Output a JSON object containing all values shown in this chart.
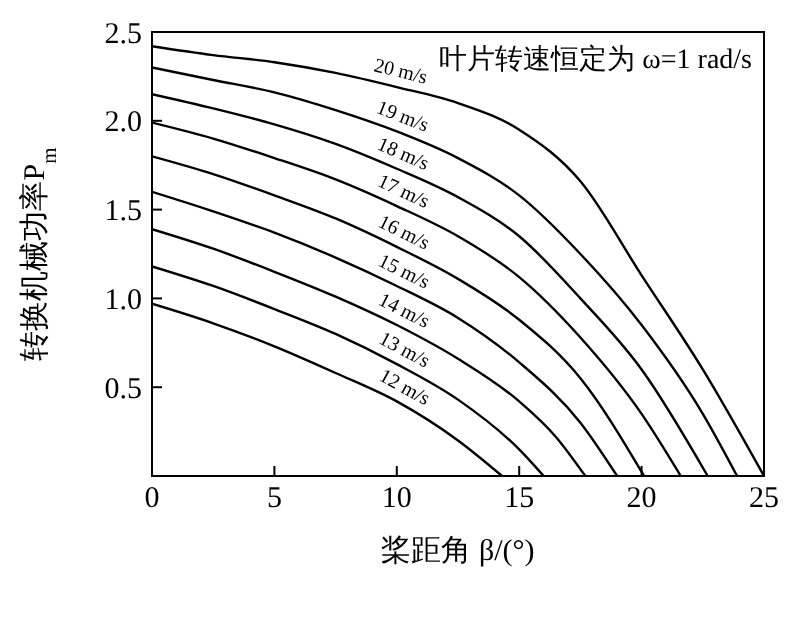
{
  "chart_data": {
    "type": "line",
    "xlabel": "桨距角 β/(°)",
    "ylabel": "转换机械功率P$_{m}$",
    "annotations": [
      "叶片转速恒定为 ω=1 rad/s"
    ],
    "xlim": [
      0,
      25
    ],
    "xticks": [
      0,
      5,
      10,
      15,
      20,
      25
    ],
    "ylim": [
      0,
      2.5
    ],
    "yticks": [
      {
        "value": 0.5,
        "label": "0.5"
      },
      {
        "value": 1,
        "label": "1.0"
      },
      {
        "value": 1.5,
        "label": "1.5"
      },
      {
        "value": 2,
        "label": "2.0"
      },
      {
        "value": 2.5,
        "label": "2.5"
      }
    ],
    "grid": false,
    "legend": false,
    "marker": "none",
    "line_style": "solid",
    "series": [
      {
        "name": "12 m/s",
        "color": "#000000",
        "x": [
          0,
          2.5,
          5,
          7.5,
          10,
          12.5,
          14.3
        ],
        "values": [
          0.97,
          0.86,
          0.73,
          0.58,
          0.42,
          0.2,
          0
        ]
      },
      {
        "name": "13 m/s",
        "color": "#000000",
        "x": [
          0,
          2.5,
          5,
          7.5,
          10,
          12.5,
          15,
          16
        ],
        "values": [
          1.18,
          1.07,
          0.94,
          0.8,
          0.63,
          0.43,
          0.15,
          0
        ]
      },
      {
        "name": "14 m/s",
        "color": "#000000",
        "x": [
          0,
          2.5,
          5,
          7.5,
          10,
          12.5,
          15,
          16.5,
          17.7
        ],
        "values": [
          1.39,
          1.28,
          1.15,
          1.01,
          0.85,
          0.66,
          0.42,
          0.22,
          0
        ]
      },
      {
        "name": "15 m/s",
        "color": "#000000",
        "x": [
          0,
          2.5,
          5,
          7.5,
          10,
          12.5,
          15,
          17.5,
          19
        ],
        "values": [
          1.6,
          1.49,
          1.37,
          1.23,
          1.07,
          0.89,
          0.64,
          0.3,
          0
        ]
      },
      {
        "name": "16 m/s",
        "color": "#000000",
        "x": [
          0,
          2.5,
          5,
          7.5,
          10,
          12.5,
          15,
          17.5,
          20.1
        ],
        "values": [
          1.8,
          1.7,
          1.58,
          1.45,
          1.29,
          1.11,
          0.88,
          0.55,
          0
        ]
      },
      {
        "name": "17 m/s",
        "color": "#000000",
        "x": [
          0,
          2.5,
          5,
          7.5,
          10,
          12.5,
          15,
          17.5,
          20,
          21.6
        ],
        "values": [
          1.99,
          1.9,
          1.79,
          1.67,
          1.52,
          1.35,
          1.12,
          0.78,
          0.35,
          0
        ]
      },
      {
        "name": "18 m/s",
        "color": "#000000",
        "x": [
          0,
          2.5,
          5,
          7.5,
          10,
          12.5,
          15,
          17.5,
          20,
          22.7
        ],
        "values": [
          2.15,
          2.07,
          1.98,
          1.87,
          1.73,
          1.57,
          1.35,
          1.0,
          0.6,
          0
        ]
      },
      {
        "name": "19 m/s",
        "color": "#000000",
        "x": [
          0,
          2.5,
          5,
          7.5,
          10,
          12.5,
          15,
          17.5,
          20,
          22.5,
          23.9
        ],
        "values": [
          2.3,
          2.23,
          2.16,
          2.06,
          1.94,
          1.79,
          1.58,
          1.25,
          0.85,
          0.35,
          0
        ]
      },
      {
        "name": "20 m/s",
        "color": "#000000",
        "x": [
          0,
          2.5,
          5,
          7.5,
          10,
          12.5,
          15,
          17.5,
          20,
          22.5,
          25
        ],
        "values": [
          2.42,
          2.37,
          2.33,
          2.27,
          2.19,
          2.1,
          1.95,
          1.66,
          1.13,
          0.6,
          0
        ]
      }
    ]
  }
}
